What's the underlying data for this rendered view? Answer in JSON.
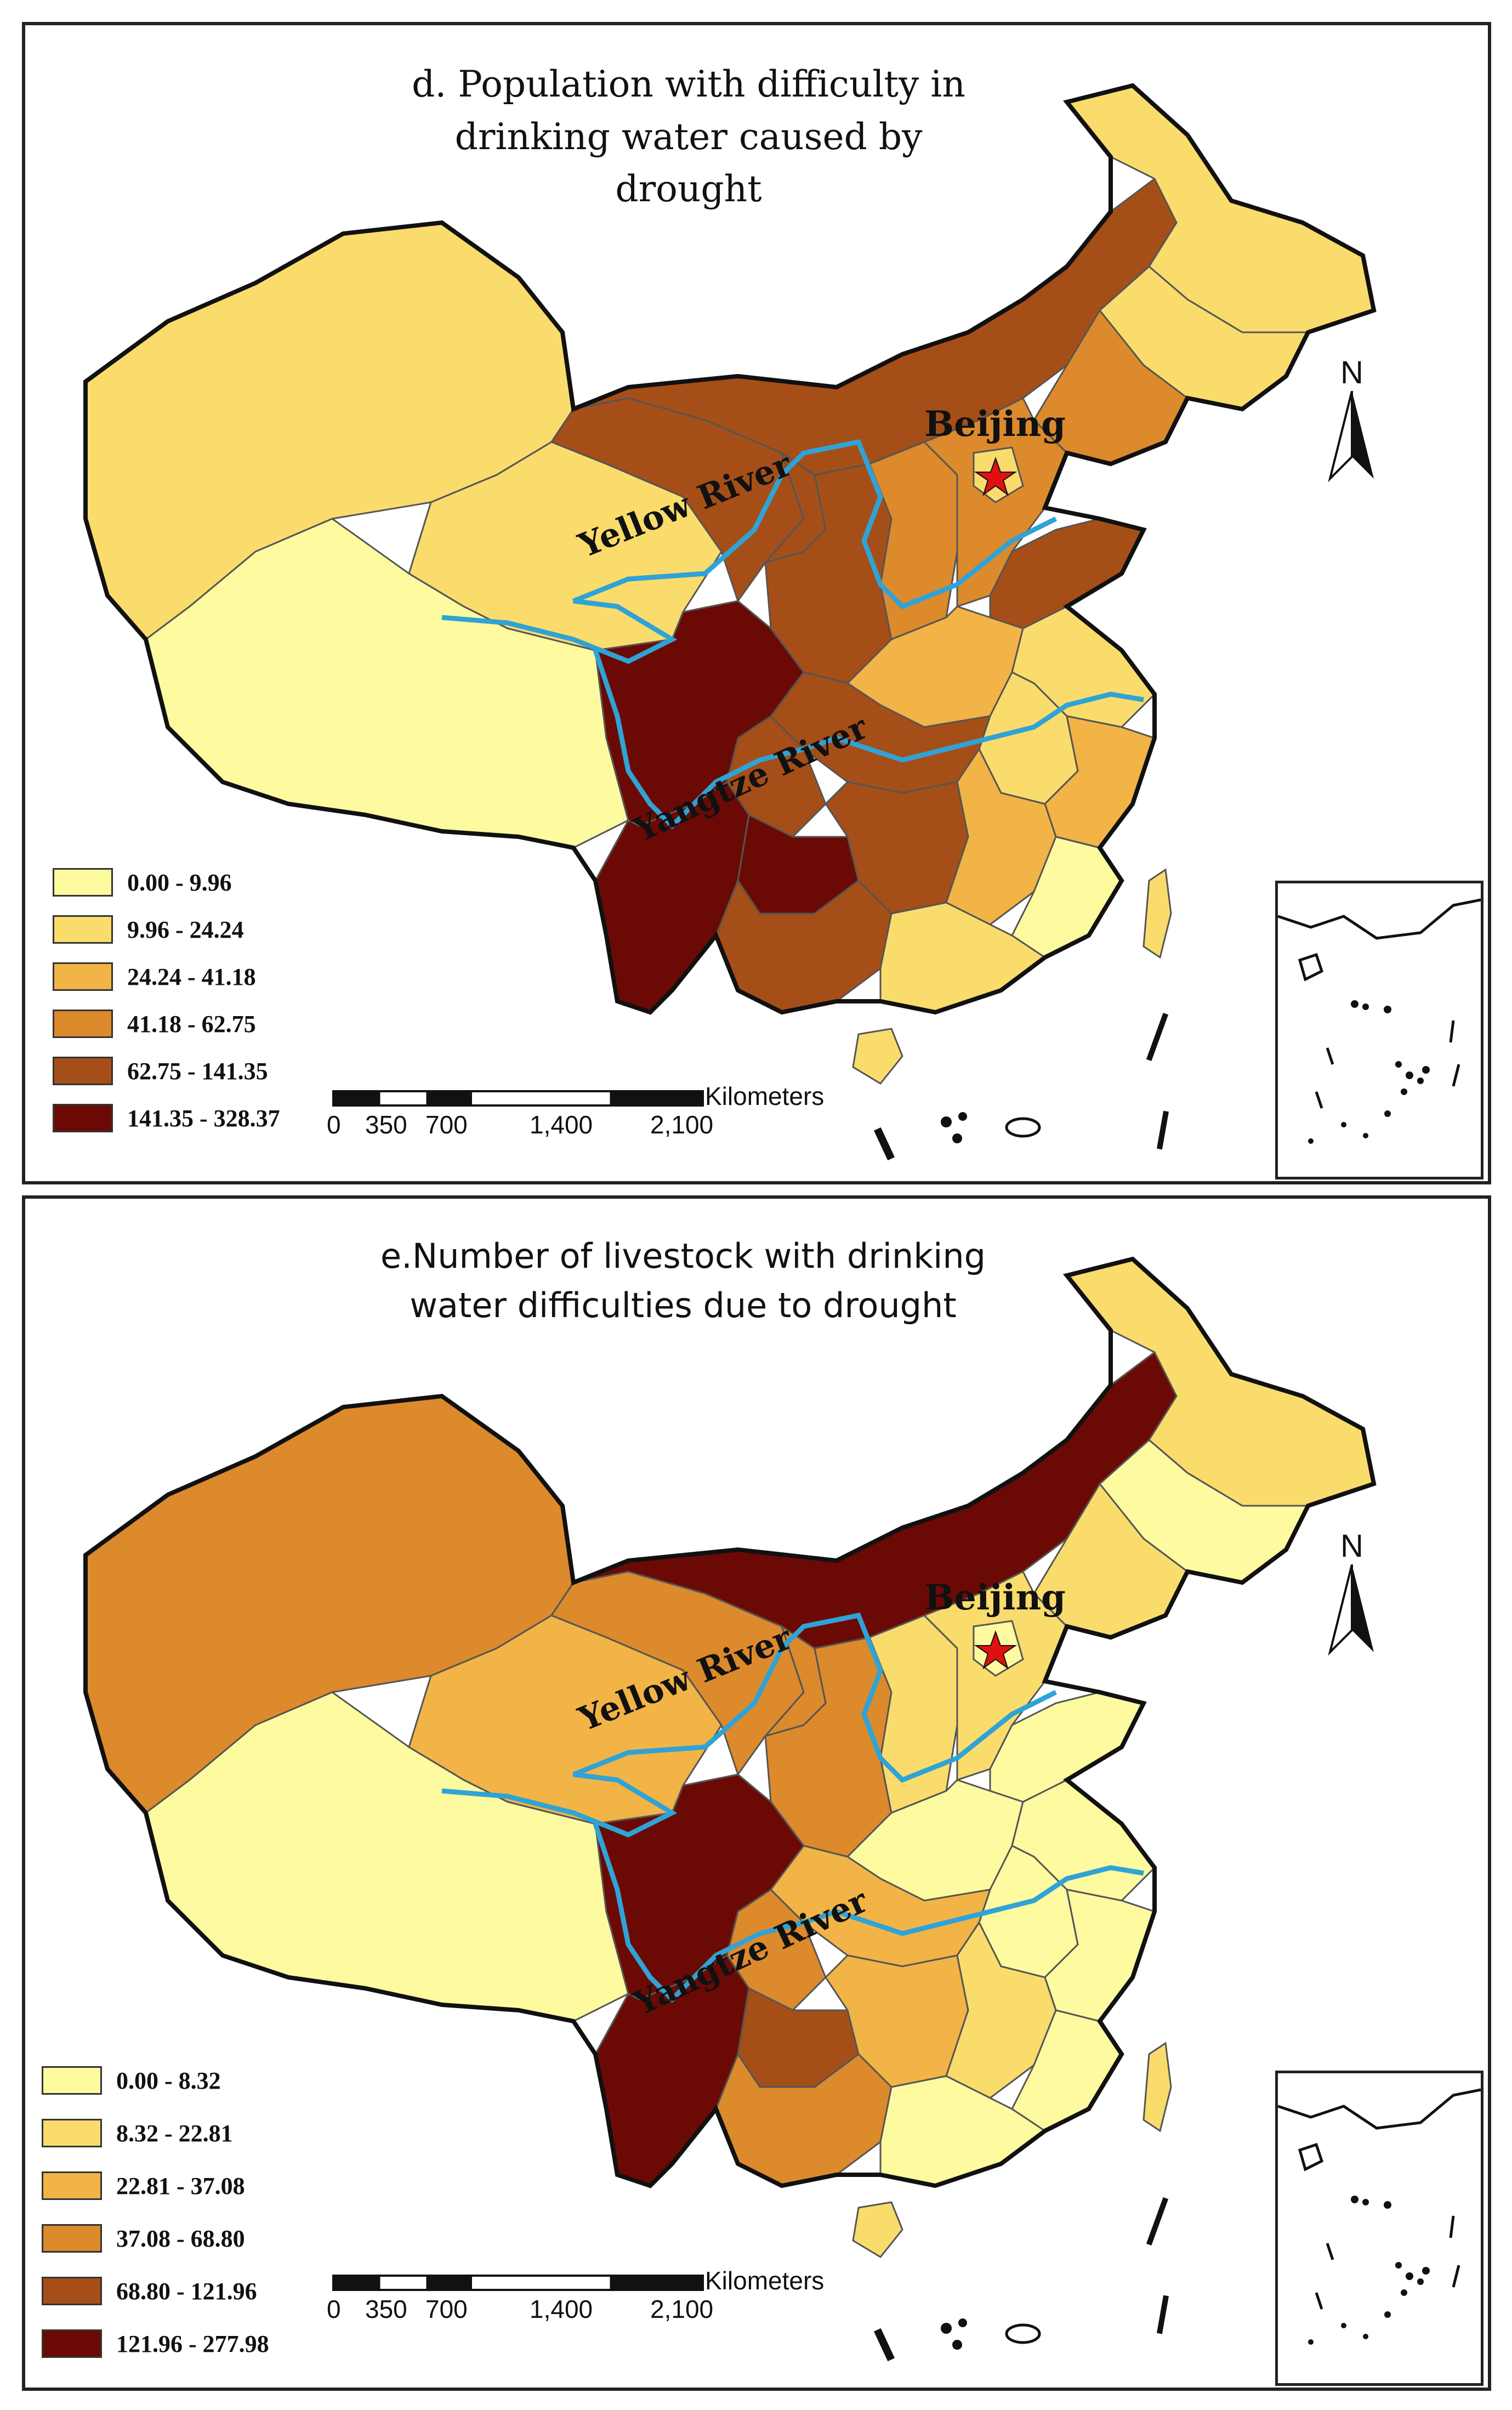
{
  "panels": [
    {
      "id": "d",
      "title_lines": [
        "d. Population with difficulty in",
        "drinking water caused by",
        "drought"
      ],
      "legend": [
        {
          "label": "0.00 - 9.96",
          "color": "#fdfaa0"
        },
        {
          "label": "9.96 - 24.24",
          "color": "#fadc6c"
        },
        {
          "label": "24.24 - 41.18",
          "color": "#f2b446"
        },
        {
          "label": "41.18 - 62.75",
          "color": "#dc8a2c"
        },
        {
          "label": "62.75 - 141.35",
          "color": "#a64e18"
        },
        {
          "label": "141.35 - 328.37",
          "color": "#6b0a05"
        }
      ]
    },
    {
      "id": "e",
      "title_lines": [
        "e.Number of livestock with drinking",
        "water difficulties due to drought"
      ],
      "legend": [
        {
          "label": "0.00 - 8.32",
          "color": "#fdfaa0"
        },
        {
          "label": "8.32 - 22.81",
          "color": "#fadc6c"
        },
        {
          "label": "22.81 - 37.08",
          "color": "#f2b446"
        },
        {
          "label": "37.08 - 68.80",
          "color": "#dc8a2c"
        },
        {
          "label": "68.80 - 121.96",
          "color": "#a64e18"
        },
        {
          "label": "121.96 - 277.98",
          "color": "#6b0a05"
        }
      ]
    }
  ],
  "labels": {
    "capital": "Beijing",
    "yellow_river": "Yellow River",
    "yangtze_river": "Yangtze River",
    "north": "N"
  },
  "scale": {
    "unit": "Kilometers",
    "ticks": [
      "0",
      "350",
      "700",
      "1,400",
      "2,100"
    ]
  },
  "colors": {
    "river": "#2fa3d6",
    "capital_star": "#e01010",
    "border": "#111111"
  }
}
